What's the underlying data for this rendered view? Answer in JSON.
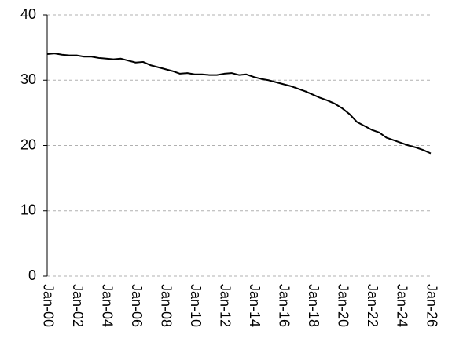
{
  "chart_data": {
    "type": "line",
    "categories": [
      "Jan-00",
      null,
      null,
      null,
      "Jan-02",
      null,
      null,
      null,
      "Jan-04",
      null,
      null,
      null,
      "Jan-06",
      null,
      null,
      null,
      "Jan-08",
      null,
      null,
      null,
      "Jan-10",
      null,
      null,
      null,
      "Jan-12",
      null,
      null,
      null,
      "Jan-14",
      null,
      null,
      null,
      "Jan-16",
      null,
      null,
      null,
      "Jan-18",
      null,
      null,
      null,
      "Jan-20",
      null,
      null,
      null,
      "Jan-22",
      null,
      null,
      null,
      "Jan-24",
      null,
      null,
      null,
      "Jan-26"
    ],
    "values": [
      34.0,
      34.1,
      33.9,
      33.8,
      33.8,
      33.6,
      33.6,
      33.4,
      33.3,
      33.2,
      33.3,
      33.0,
      32.7,
      32.8,
      32.3,
      32.0,
      31.7,
      31.4,
      31.0,
      31.1,
      30.9,
      30.9,
      30.8,
      30.8,
      31.0,
      31.1,
      30.8,
      30.9,
      30.5,
      30.2,
      30.0,
      29.7,
      29.4,
      29.1,
      28.7,
      28.3,
      27.8,
      27.3,
      26.9,
      26.4,
      25.7,
      24.8,
      23.6,
      23.0,
      22.4,
      22.0,
      21.2,
      20.8,
      20.4,
      20.0,
      19.7,
      19.3,
      18.8
    ],
    "color": "#000000",
    "ylim": [
      0,
      40
    ],
    "yticks": [
      0,
      10,
      20,
      30,
      40
    ],
    "grid": true
  }
}
